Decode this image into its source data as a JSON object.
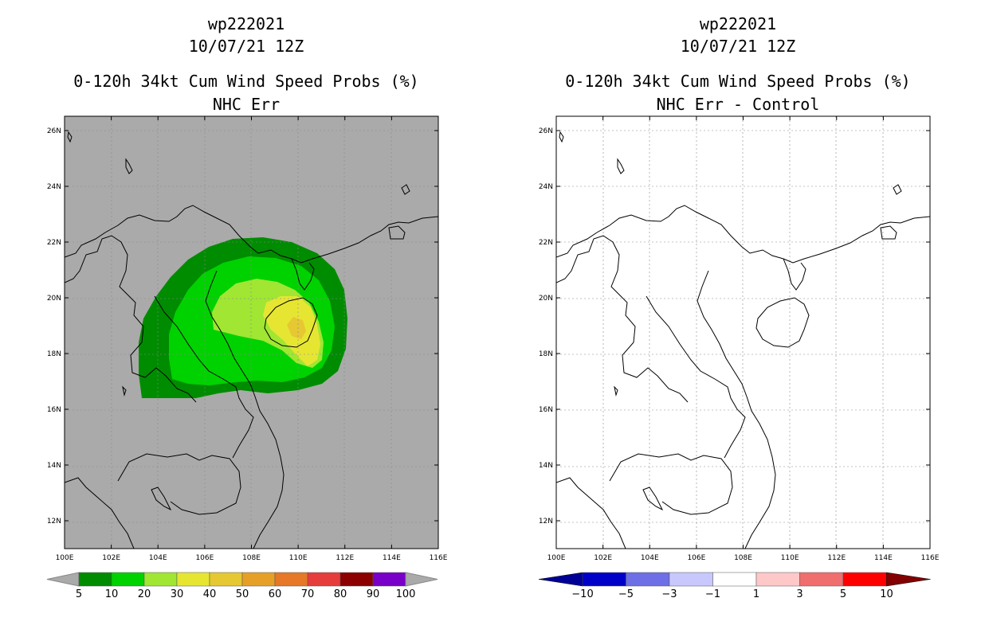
{
  "panels": [
    {
      "storm_id": "wp222021",
      "datetime": "10/07/21 12Z",
      "product": "0-120h 34kt Cum Wind Speed Probs (%)",
      "subtitle": "NHC Err",
      "x_ticks": [
        "100E",
        "102E",
        "104E",
        "106E",
        "108E",
        "110E",
        "112E",
        "114E",
        "116E"
      ],
      "y_ticks": [
        "12N",
        "14N",
        "16N",
        "18N",
        "20N",
        "22N",
        "24N",
        "26N"
      ],
      "background": "#aaaaaa",
      "colorbar": {
        "labels": [
          "5",
          "10",
          "20",
          "30",
          "40",
          "50",
          "60",
          "70",
          "80",
          "90",
          "100"
        ],
        "colors": [
          "#008c00",
          "#00d200",
          "#a0e632",
          "#e6e632",
          "#e6c832",
          "#e6a028",
          "#e67828",
          "#e63c3c",
          "#8c0000",
          "#7800c8"
        ],
        "end_color": "#aaaaaa"
      }
    },
    {
      "storm_id": "wp222021",
      "datetime": "10/07/21 12Z",
      "product": "0-120h 34kt Cum Wind Speed Probs (%)",
      "subtitle": "NHC Err - Control",
      "x_ticks": [
        "100E",
        "102E",
        "104E",
        "106E",
        "108E",
        "110E",
        "112E",
        "114E",
        "116E"
      ],
      "y_ticks": [
        "12N",
        "14N",
        "16N",
        "18N",
        "20N",
        "22N",
        "24N",
        "26N"
      ],
      "background": "#ffffff",
      "colorbar": {
        "labels": [
          "-10",
          "-5",
          "-3",
          "-1",
          "1",
          "3",
          "5",
          "10"
        ],
        "colors": [
          "#0000c8",
          "#6e6ee6",
          "#c8c8ff",
          "#ffffff",
          "#ffc8c8",
          "#f06e6e",
          "#ff0000"
        ],
        "low_end_color": "#000096",
        "high_end_color": "#820000"
      }
    }
  ],
  "probability_contours": {
    "levels": [
      "5%",
      "10%",
      "20%",
      "30%",
      "40%"
    ],
    "colors": [
      "#008c00",
      "#00d200",
      "#a0e632",
      "#e6e632",
      "#e6c832"
    ]
  }
}
